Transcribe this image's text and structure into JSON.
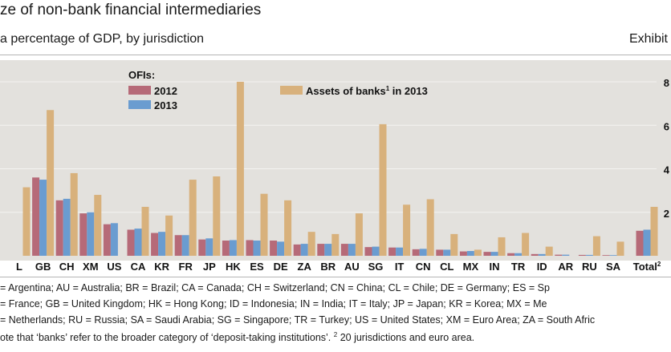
{
  "header": {
    "title": "ze of non-bank financial intermediaries",
    "subtitle": "a percentage of GDP, by jurisdiction",
    "exhibit": "Exhibit"
  },
  "colors": {
    "plot_bg": "#e3e1dd",
    "ofi_2012": "#b66a78",
    "ofi_2013": "#6a9cd0",
    "banks_2013": "#d8b17c",
    "grid": "#f4f3f1"
  },
  "legend": {
    "group_title": "OFIs:",
    "ofi_2012": "2012",
    "ofi_2013": "2013",
    "banks_prefix": "Assets of banks",
    "banks_sup": "1",
    "banks_suffix": " in 2013"
  },
  "notes": {
    "line1": "= Argentina;   AU = Australia;   BR = Brazil;   CA = Canada;   CH = Switzerland;   CN = China;   CL = Chile;   DE = Germany;   ES = Sp",
    "line2": "= France;   GB = United   Kingdom;   HK = Hong Kong;   ID = Indonesia;   IN = India;   IT = Italy;   JP = Japan;   KR = Korea;   MX = Me",
    "line3": "= Netherlands; RU = Russia; SA = Saudi Arabia; SG = Singapore; TR = Turkey; US = United States; XM = Euro Area; ZA = South Afric",
    "line4_prefix": "ote that ‘banks’ refer to the broader category of ‘deposit-taking institutions’.",
    "line4_sup": "2",
    "line4_suffix": " 20 jurisdictions and euro area."
  },
  "chart_data": {
    "type": "bar",
    "title": "",
    "xlabel": "",
    "ylabel": "",
    "ylim": [
      0,
      800
    ],
    "y_ticks": [
      0,
      200,
      400,
      600,
      800
    ],
    "y_tick_labels": [
      "",
      "2",
      "4",
      "6",
      "8"
    ],
    "grid": true,
    "legend_position": "top-left",
    "categories": [
      "L",
      "GB",
      "CH",
      "XM",
      "US",
      "CA",
      "KR",
      "FR",
      "JP",
      "HK",
      "ES",
      "DE",
      "ZA",
      "BR",
      "AU",
      "SG",
      "IT",
      "CN",
      "CL",
      "MX",
      "IN",
      "TR",
      "ID",
      "AR",
      "RU",
      "SA",
      "Total"
    ],
    "category_sup": {
      "Total": "2"
    },
    "series": [
      {
        "name": "2012",
        "values": [
          0,
          360,
          255,
          195,
          145,
          120,
          105,
          95,
          75,
          70,
          72,
          70,
          52,
          55,
          55,
          40,
          38,
          30,
          28,
          20,
          18,
          12,
          8,
          5,
          4,
          3,
          115
        ]
      },
      {
        "name": "2013",
        "values": [
          0,
          350,
          262,
          200,
          150,
          125,
          110,
          95,
          80,
          72,
          70,
          65,
          55,
          55,
          55,
          42,
          38,
          32,
          28,
          22,
          18,
          12,
          8,
          5,
          4,
          3,
          120
        ]
      },
      {
        "name": "Assets of banks in 2013",
        "values": [
          315,
          670,
          380,
          280,
          0,
          225,
          185,
          350,
          365,
          800,
          285,
          255,
          110,
          100,
          195,
          605,
          235,
          260,
          100,
          28,
          85,
          105,
          42,
          0,
          90,
          65,
          225
        ]
      }
    ]
  }
}
